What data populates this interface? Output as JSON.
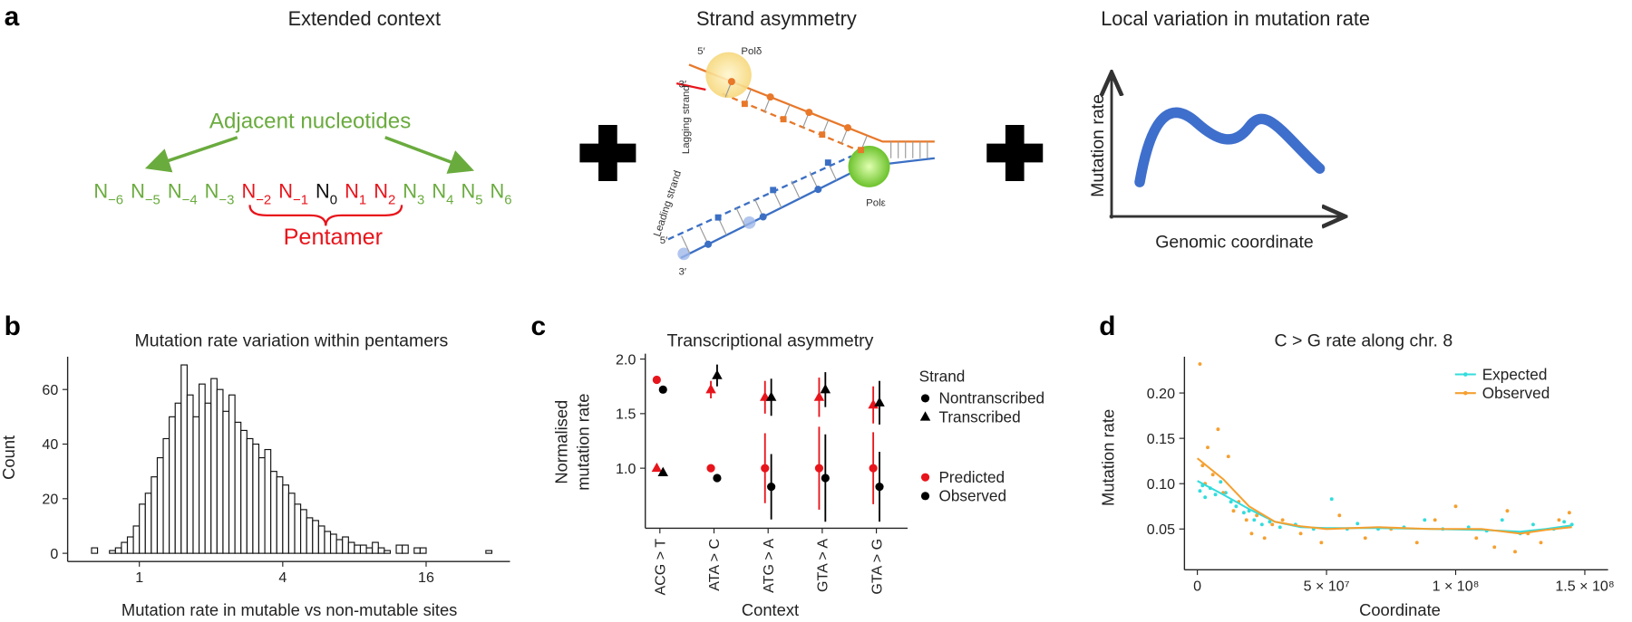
{
  "panels": [
    "a",
    "b",
    "c",
    "d"
  ],
  "diagram": {
    "context": {
      "title": "Extended context",
      "adjacent": "Adjacent nucleotides",
      "pentamer": "Pentamer",
      "nucleotides": [
        {
          "base": "N",
          "sub": "−6",
          "color": "#6aab3e"
        },
        {
          "base": "N",
          "sub": "−5",
          "color": "#6aab3e"
        },
        {
          "base": "N",
          "sub": "−4",
          "color": "#6aab3e"
        },
        {
          "base": "N",
          "sub": "−3",
          "color": "#6aab3e"
        },
        {
          "base": "N",
          "sub": "−2",
          "color": "#e8141b"
        },
        {
          "base": "N",
          "sub": "−1",
          "color": "#e8141b"
        },
        {
          "base": "N",
          "sub": "0",
          "color": "#111111"
        },
        {
          "base": "N",
          "sub": "1",
          "color": "#e8141b"
        },
        {
          "base": "N",
          "sub": "2",
          "color": "#e8141b"
        },
        {
          "base": "N",
          "sub": "3",
          "color": "#6aab3e"
        },
        {
          "base": "N",
          "sub": "4",
          "color": "#6aab3e"
        },
        {
          "base": "N",
          "sub": "5",
          "color": "#6aab3e"
        },
        {
          "base": "N",
          "sub": "6",
          "color": "#6aab3e"
        }
      ]
    },
    "strand": {
      "title": "Strand asymmetry",
      "lagging_5": "5′",
      "pol_delta": "Polδ",
      "lagging_3": "3′",
      "lagging": "Lagging strand",
      "leading": "Leading strand",
      "leading_5": "5′",
      "leading_3": "3′",
      "pol_epsilon": "Polε"
    },
    "local": {
      "title": "Local variation in mutation rate",
      "ylabel": "Mutation rate",
      "xlabel": "Genomic coordinate"
    }
  },
  "chart_data": [
    {
      "type": "histogram",
      "title": "Mutation rate variation within pentamers",
      "xlabel": "Mutation rate in mutable vs non-mutable sites",
      "ylabel": "Count",
      "xscale": "log",
      "xlim": [
        0.5,
        36
      ],
      "xticks": [
        1,
        4,
        16
      ],
      "ylim": [
        -3,
        72
      ],
      "yticks": [
        0,
        20,
        40,
        60
      ],
      "color": "#ffffff",
      "edgecolor": "#111111",
      "bins": [
        0.5946,
        0.63,
        0.6674,
        0.7071,
        0.7492,
        0.7937,
        0.8409,
        0.8909,
        0.9439,
        1,
        1.0595,
        1.1225,
        1.1892,
        1.2599,
        1.3348,
        1.4142,
        1.4983,
        1.5874,
        1.6818,
        1.7818,
        1.8877,
        2,
        2.1189,
        2.2449,
        2.3784,
        2.5198,
        2.6697,
        2.8284,
        2.9966,
        3.1748,
        3.3636,
        3.5636,
        3.7755,
        4,
        4.2379,
        4.4898,
        4.7568,
        5.0397,
        5.3394,
        5.6569,
        5.9932,
        6.3496,
        6.7272,
        7.1272,
        7.551,
        8,
        8.4757,
        8.9797,
        9.5137,
        10.0794,
        10.6787,
        11.3137,
        11.9865,
        12.6992,
        13.4543,
        14.2544,
        15.102,
        16,
        16.9514,
        17.9594,
        19.0273,
        20.1587,
        21.3575,
        22.6274,
        23.973,
        25.3984,
        26.9087,
        28.5088,
        30.2039,
        32
      ],
      "counts": [
        0,
        2,
        0,
        0,
        1,
        2,
        4,
        6,
        10,
        18,
        22,
        28,
        35,
        42,
        50,
        55,
        69,
        58,
        50,
        62,
        55,
        64,
        60,
        52,
        58,
        48,
        45,
        42,
        40,
        35,
        38,
        30,
        28,
        25,
        22,
        18,
        16,
        13,
        12,
        10,
        8,
        7,
        5,
        6,
        4,
        3,
        3,
        2,
        4,
        2,
        1,
        0,
        3,
        3,
        0,
        2,
        2,
        0,
        0,
        0,
        0,
        0,
        0,
        0,
        0,
        0,
        0,
        1,
        0
      ]
    },
    {
      "type": "errorbar",
      "title": "Transcriptional asymmetry",
      "ylabel": [
        "Normalised",
        "mutation rate"
      ],
      "xlabel": "Context",
      "categories": [
        "ACG > T",
        "ATA > C",
        "ATG > A",
        "GTA > A",
        "GTA > G"
      ],
      "ylim": [
        0.45,
        2.05
      ],
      "yticks": [
        {
          "value": 1,
          "label": "1.0"
        },
        1.5,
        {
          "value": 2,
          "label": "2.0"
        }
      ],
      "legend": {
        "title": "Strand",
        "shapes": [
          {
            "label": "Nontranscribed",
            "marker": "circle"
          },
          {
            "label": "Transcribed",
            "marker": "triangle"
          }
        ],
        "colors": [
          {
            "label": "Predicted",
            "color": "#e8141b"
          },
          {
            "label": "Observed",
            "color": "#000000"
          }
        ]
      },
      "series": [
        {
          "strand": 0,
          "source": 0,
          "values": [
            1.81,
            1.0,
            1.0,
            1.0,
            1.0
          ],
          "errors": [
            0.02,
            0.02,
            0.32,
            0.38,
            0.33
          ]
        },
        {
          "strand": 0,
          "source": 1,
          "values": [
            1.72,
            0.91,
            0.83,
            0.91,
            0.83
          ],
          "errors": [
            0.02,
            0.02,
            0.3,
            0.4,
            0.32
          ]
        },
        {
          "strand": 1,
          "source": 0,
          "values": [
            1.0,
            1.72,
            1.65,
            1.65,
            1.58
          ],
          "errors": [
            0.02,
            0.08,
            0.15,
            0.18,
            0.17
          ]
        },
        {
          "strand": 1,
          "source": 1,
          "values": [
            0.96,
            1.85,
            1.65,
            1.72,
            1.6
          ],
          "errors": [
            0.02,
            0.1,
            0.17,
            0.16,
            0.2
          ]
        }
      ]
    },
    {
      "type": "line",
      "title": "C > G rate along chr. 8",
      "xlabel": "Coordinate",
      "ylabel": "Mutation rate",
      "xlim": [
        -5000000.0,
        159000000.0
      ],
      "xticks": [
        0,
        {
          "value": 50000000.0,
          "label": "5 × 10⁷"
        },
        {
          "value": 100000000.0,
          "label": "1 × 10⁸"
        },
        {
          "value": 150000000.0,
          "label": "1.5 × 10⁸"
        }
      ],
      "ylim": [
        0.005,
        0.24
      ],
      "yticks": [
        0.05,
        {
          "value": 0.1,
          "label": "0.10"
        },
        0.15,
        {
          "value": 0.2,
          "label": "0.20"
        }
      ],
      "legend": "upper right",
      "series": [
        {
          "name": "Expected",
          "color": "#33dcdc",
          "x": [
            0,
            10000000.0,
            20000000.0,
            30000000.0,
            40000000.0,
            50000000.0,
            70000000.0,
            90000000.0,
            110000000.0,
            125000000.0,
            135000000.0,
            145000000.0
          ],
          "values": [
            0.103,
            0.088,
            0.072,
            0.058,
            0.052,
            0.051,
            0.051,
            0.05,
            0.049,
            0.047,
            0.05,
            0.054
          ],
          "points_x": [
            1000000.0,
            2000000.0,
            3000000.0,
            5000000.0,
            7000000.0,
            9000000.0,
            11000000.0,
            13000000.0,
            15000000.0,
            18000000.0,
            20000000.0,
            22000000.0,
            25000000.0,
            28000000.0,
            32000000.0,
            38000000.0,
            45000000.0,
            52000000.0,
            58000000.0,
            62000000.0,
            70000000.0,
            80000000.0,
            88000000.0,
            95000000.0,
            105000000.0,
            112000000.0,
            118000000.0,
            125000000.0,
            130000000.0,
            138000000.0,
            142000000.0,
            145000000.0
          ],
          "points": [
            0.092,
            0.098,
            0.085,
            0.095,
            0.088,
            0.102,
            0.09,
            0.08,
            0.075,
            0.068,
            0.07,
            0.06,
            0.055,
            0.058,
            0.052,
            0.055,
            0.05,
            0.083,
            0.05,
            0.056,
            0.05,
            0.052,
            0.06,
            0.05,
            0.052,
            0.048,
            0.06,
            0.045,
            0.055,
            0.05,
            0.058,
            0.055
          ]
        },
        {
          "name": "Observed",
          "color": "#f5a030",
          "x": [
            0,
            10000000.0,
            20000000.0,
            30000000.0,
            40000000.0,
            50000000.0,
            70000000.0,
            90000000.0,
            110000000.0,
            125000000.0,
            135000000.0,
            145000000.0
          ],
          "values": [
            0.128,
            0.105,
            0.075,
            0.058,
            0.053,
            0.05,
            0.052,
            0.05,
            0.05,
            0.045,
            0.049,
            0.052
          ],
          "points_x": [
            1000000.0,
            2000000.0,
            3000000.0,
            4000000.0,
            6000000.0,
            8000000.0,
            10000000.0,
            12000000.0,
            14000000.0,
            16000000.0,
            19000000.0,
            21000000.0,
            23000000.0,
            26000000.0,
            29000000.0,
            33000000.0,
            40000000.0,
            48000000.0,
            55000000.0,
            65000000.0,
            75000000.0,
            85000000.0,
            92000000.0,
            100000000.0,
            108000000.0,
            115000000.0,
            120000000.0,
            123000000.0,
            128000000.0,
            133000000.0,
            140000000.0,
            144000000.0
          ],
          "points": [
            0.232,
            0.12,
            0.1,
            0.14,
            0.11,
            0.16,
            0.09,
            0.13,
            0.07,
            0.08,
            0.06,
            0.045,
            0.065,
            0.04,
            0.055,
            0.06,
            0.045,
            0.035,
            0.065,
            0.04,
            0.05,
            0.035,
            0.06,
            0.075,
            0.04,
            0.03,
            0.07,
            0.025,
            0.045,
            0.035,
            0.06,
            0.068
          ]
        }
      ]
    }
  ]
}
